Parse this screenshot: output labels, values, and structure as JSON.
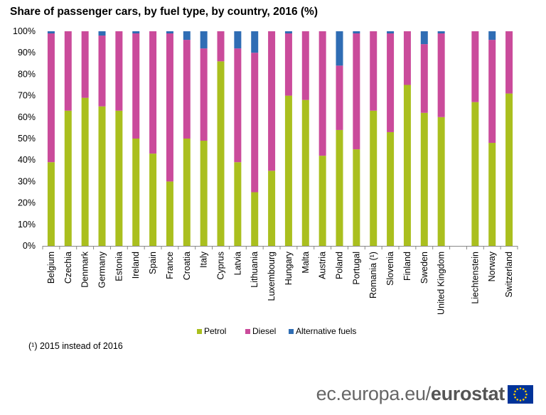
{
  "title": "Share of passenger cars, by fuel type, by country, 2016 (%)",
  "footnote": "(¹) 2015 instead of 2016",
  "brand": {
    "prefix": "ec.europa.eu/",
    "name": "eurostat"
  },
  "colors": {
    "petrol": "#aabf1e",
    "diesel": "#ca4b9b",
    "alternative": "#2f6db4",
    "axis": "#888888"
  },
  "chart_data": {
    "type": "bar",
    "stacked": true,
    "categories": [
      "Belgium",
      "Czechia",
      "Denmark",
      "Germany",
      "Estonia",
      "Ireland",
      "Spain",
      "France",
      "Croatia",
      "Italy",
      "Cyprus",
      "Latvia",
      "Lithuania",
      "Luxembourg",
      "Hungary",
      "Malta",
      "Austria",
      "Poland",
      "Portugal",
      "Romania (¹)",
      "Slovenia",
      "Finland",
      "Sweden",
      "United Kingdom",
      "",
      "Liechtenstein",
      "Norway",
      "Switzerland"
    ],
    "series": [
      {
        "name": "Petrol",
        "values": [
          39,
          63,
          69,
          65,
          63,
          50,
          43,
          30,
          50,
          49,
          86,
          39,
          25,
          35,
          70,
          68,
          42,
          54,
          45,
          63,
          53,
          75,
          62,
          60,
          null,
          67,
          48,
          71
        ]
      },
      {
        "name": "Diesel",
        "values": [
          60,
          37,
          31,
          33,
          37,
          49,
          57,
          69,
          46,
          43,
          14,
          53,
          65,
          65,
          29,
          32,
          58,
          30,
          54,
          37,
          46,
          25,
          32,
          39,
          null,
          33,
          48,
          29
        ]
      },
      {
        "name": "Alternative fuels",
        "values": [
          1,
          0,
          0,
          2,
          0,
          1,
          0,
          1,
          4,
          8,
          0,
          8,
          10,
          0,
          1,
          0,
          0,
          16,
          1,
          0,
          1,
          0,
          6,
          1,
          null,
          0,
          4,
          0
        ]
      }
    ],
    "yticks": [
      "0%",
      "10%",
      "20%",
      "30%",
      "40%",
      "50%",
      "60%",
      "70%",
      "80%",
      "90%",
      "100%"
    ],
    "ylim": [
      0,
      100
    ],
    "legend": "bottom"
  }
}
